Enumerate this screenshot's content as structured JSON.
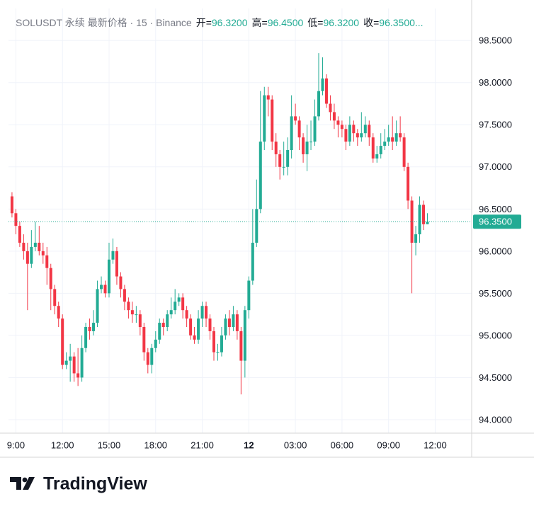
{
  "chart_data": {
    "type": "candlestick",
    "legend": {
      "symbol": "SOLUSDT 永续 最新价格 · 15 · Binance",
      "open_label": "开=",
      "open": "96.3200",
      "high_label": "高=",
      "high": "96.4500",
      "low_label": "低=",
      "low": "96.3200",
      "close_label": "收=",
      "close": "96.3500..."
    },
    "up_color": "#22ab94",
    "down_color": "#f23645",
    "grid": true,
    "open": [
      96.65,
      96.45,
      96.3,
      96.1,
      96.0,
      95.85,
      96.05,
      96.1,
      96.0,
      95.95,
      95.8,
      95.55,
      95.35,
      95.2,
      94.65,
      94.7,
      94.75,
      94.55,
      94.5,
      94.85,
      95.1,
      95.05,
      95.15,
      95.55,
      95.6,
      95.5,
      95.9,
      96.0,
      95.7,
      95.55,
      95.4,
      95.3,
      95.25,
      95.25,
      95.1,
      94.8,
      94.65,
      94.85,
      94.95,
      95.15,
      95.1,
      95.25,
      95.3,
      95.4,
      95.45,
      95.3,
      95.2,
      95.0,
      94.95,
      95.2,
      95.35,
      95.2,
      95.05,
      94.8,
      94.8,
      95.0,
      95.2,
      95.1,
      95.25,
      95.05,
      94.7,
      95.3,
      95.65,
      96.1,
      96.5,
      97.3,
      97.85,
      97.8,
      97.3,
      97.15,
      97.0,
      97.0,
      97.2,
      97.6,
      97.55,
      97.35,
      97.15,
      97.3,
      97.3,
      97.6,
      97.9,
      98.05,
      97.75,
      97.65,
      97.55,
      97.5,
      97.45,
      97.3,
      97.5,
      97.4,
      97.35,
      97.4,
      97.5,
      97.35,
      97.1,
      97.15,
      97.25,
      97.3,
      97.35,
      97.3,
      97.4,
      97.35,
      97.0,
      96.6,
      96.1,
      96.2,
      96.55,
      96.32
    ],
    "high": [
      96.7,
      96.5,
      96.35,
      96.2,
      96.1,
      96.25,
      96.35,
      96.3,
      96.1,
      96.05,
      95.85,
      95.6,
      95.4,
      95.25,
      94.8,
      94.9,
      94.8,
      94.85,
      95.0,
      95.15,
      95.2,
      95.3,
      95.65,
      95.7,
      95.65,
      96.1,
      96.15,
      96.05,
      95.75,
      95.6,
      95.45,
      95.4,
      95.35,
      95.3,
      95.15,
      94.85,
      94.9,
      95.05,
      95.2,
      95.2,
      95.3,
      95.45,
      95.55,
      95.5,
      95.5,
      95.35,
      95.25,
      95.1,
      95.3,
      95.4,
      95.4,
      95.25,
      95.1,
      94.9,
      95.1,
      95.25,
      95.3,
      95.35,
      95.3,
      95.1,
      95.35,
      95.7,
      96.5,
      96.85,
      97.9,
      97.95,
      97.95,
      97.85,
      97.4,
      97.2,
      97.3,
      97.35,
      97.85,
      97.75,
      97.6,
      97.4,
      97.5,
      97.55,
      97.8,
      98.35,
      98.3,
      98.1,
      97.85,
      97.75,
      97.6,
      97.55,
      97.5,
      97.6,
      97.55,
      97.45,
      97.65,
      97.6,
      97.55,
      97.4,
      97.25,
      97.4,
      97.45,
      97.5,
      97.6,
      97.55,
      97.6,
      97.4,
      97.05,
      96.65,
      96.3,
      96.65,
      96.6,
      96.45
    ],
    "low": [
      96.4,
      96.2,
      96.05,
      95.9,
      95.3,
      95.8,
      96.0,
      95.95,
      95.85,
      95.6,
      95.3,
      95.25,
      95.1,
      94.6,
      94.6,
      94.45,
      94.45,
      94.4,
      94.45,
      94.8,
      94.95,
      95.0,
      95.1,
      95.5,
      95.45,
      95.45,
      95.85,
      95.6,
      95.45,
      95.3,
      95.2,
      95.15,
      95.15,
      95.0,
      94.7,
      94.55,
      94.55,
      94.8,
      94.9,
      95.0,
      95.05,
      95.2,
      95.25,
      95.35,
      95.2,
      95.1,
      94.95,
      94.9,
      94.9,
      95.1,
      95.1,
      94.95,
      94.7,
      94.7,
      94.75,
      94.95,
      95.0,
      95.05,
      94.95,
      94.3,
      94.5,
      95.2,
      95.6,
      96.05,
      96.45,
      97.2,
      97.6,
      97.2,
      97.0,
      96.85,
      96.9,
      96.9,
      97.1,
      97.5,
      97.2,
      97.05,
      96.95,
      97.2,
      97.25,
      97.55,
      97.85,
      97.7,
      97.55,
      97.45,
      97.35,
      97.35,
      97.2,
      97.25,
      97.3,
      97.25,
      97.3,
      97.35,
      97.25,
      97.05,
      97.05,
      97.1,
      97.2,
      97.25,
      97.2,
      97.25,
      97.3,
      96.95,
      96.5,
      95.5,
      95.95,
      96.1,
      96.25,
      96.32
    ],
    "close": [
      96.45,
      96.3,
      96.1,
      96.0,
      95.85,
      96.05,
      96.1,
      96.0,
      95.95,
      95.8,
      95.55,
      95.35,
      95.2,
      94.65,
      94.7,
      94.75,
      94.55,
      94.5,
      94.85,
      95.1,
      95.05,
      95.15,
      95.55,
      95.6,
      95.5,
      95.9,
      96.0,
      95.7,
      95.55,
      95.4,
      95.3,
      95.25,
      95.25,
      95.1,
      94.8,
      94.65,
      94.85,
      94.95,
      95.15,
      95.1,
      95.25,
      95.3,
      95.4,
      95.45,
      95.3,
      95.2,
      95.0,
      94.95,
      95.2,
      95.35,
      95.2,
      95.05,
      94.8,
      94.8,
      95.0,
      95.2,
      95.1,
      95.25,
      95.05,
      94.7,
      95.3,
      95.65,
      96.1,
      96.5,
      97.3,
      97.85,
      97.8,
      97.3,
      97.15,
      97.0,
      97.0,
      97.2,
      97.6,
      97.55,
      97.35,
      97.15,
      97.3,
      97.3,
      97.6,
      97.9,
      98.05,
      97.75,
      97.65,
      97.55,
      97.5,
      97.45,
      97.3,
      97.5,
      97.4,
      97.35,
      97.4,
      97.5,
      97.35,
      97.1,
      97.15,
      97.25,
      97.3,
      97.35,
      97.3,
      97.4,
      97.35,
      97.0,
      96.6,
      96.1,
      96.2,
      96.55,
      96.32,
      96.35
    ],
    "last_price": {
      "value": 96.35,
      "label": "96.3500"
    },
    "ylim": [
      93.84,
      98.88
    ],
    "yticks": [
      {
        "value": 94.0,
        "label": "94.0000"
      },
      {
        "value": 94.5,
        "label": "94.5000"
      },
      {
        "value": 95.0,
        "label": "95.0000"
      },
      {
        "value": 95.5,
        "label": "95.5000"
      },
      {
        "value": 96.0,
        "label": "96.0000"
      },
      {
        "value": 96.5,
        "label": "96.5000"
      },
      {
        "value": 97.0,
        "label": "97.0000"
      },
      {
        "value": 97.5,
        "label": "97.5000"
      },
      {
        "value": 98.0,
        "label": "98.0000"
      },
      {
        "value": 98.5,
        "label": "98.5000"
      }
    ],
    "xlim": [
      -0.9,
      118.4
    ],
    "xticks": [
      {
        "value": 1,
        "label": "9:00"
      },
      {
        "value": 13,
        "label": "12:00"
      },
      {
        "value": 25,
        "label": "15:00"
      },
      {
        "value": 37,
        "label": "18:00"
      },
      {
        "value": 49,
        "label": "21:00"
      },
      {
        "value": 61,
        "label": "12",
        "bold": true
      },
      {
        "value": 73,
        "label": "03:00"
      },
      {
        "value": 85,
        "label": "06:00"
      },
      {
        "value": 97,
        "label": "09:00"
      },
      {
        "value": 109,
        "label": "12:00"
      }
    ],
    "brand": "TradingView"
  }
}
